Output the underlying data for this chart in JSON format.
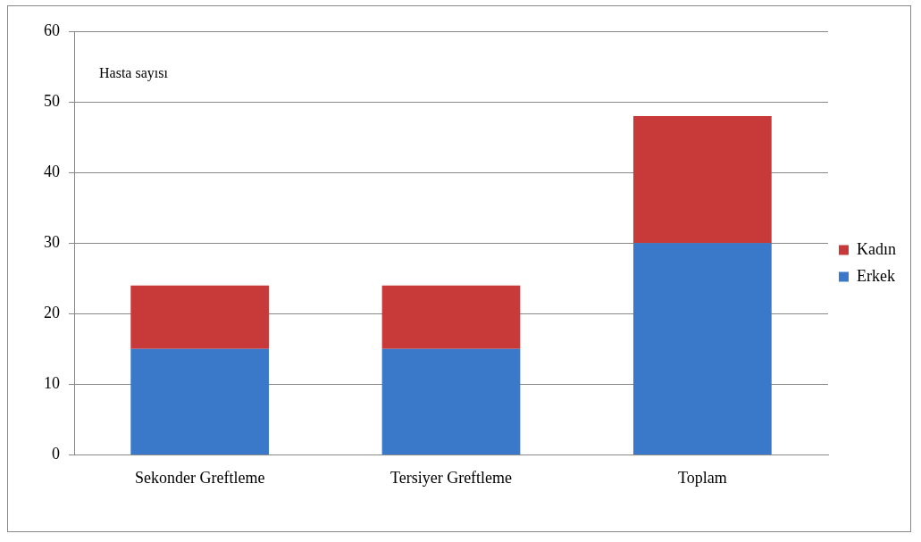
{
  "chart_data": {
    "type": "bar",
    "stacked": true,
    "ylabel": "Hasta sayısı",
    "categories": [
      "Sekonder Greftleme",
      "Tersiyer Greftleme",
      "Toplam"
    ],
    "series": [
      {
        "name": "Erkek",
        "color": "#3a78c9",
        "values": [
          15,
          15,
          30
        ]
      },
      {
        "name": "Kadın",
        "color": "#c8393a",
        "values": [
          9,
          9,
          18
        ]
      }
    ],
    "ylim": [
      0,
      60
    ],
    "yticks": [
      0,
      10,
      20,
      30,
      40,
      50,
      60
    ],
    "grid": "y",
    "legend": "right"
  }
}
